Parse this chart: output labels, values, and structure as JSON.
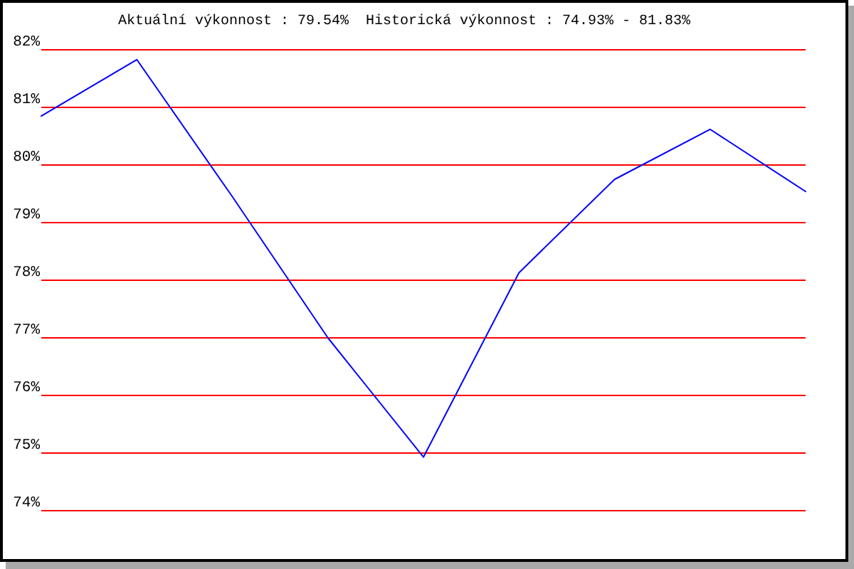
{
  "chart_data": {
    "type": "line",
    "title": "Aktuální výkonnost : 79.54%  Historická výkonnost : 74.93% - 81.83%",
    "categories": [
      null,
      null,
      null,
      null,
      null,
      null,
      null,
      null,
      null
    ],
    "series": [
      {
        "color": "#0000ff",
        "values": [
          80.85,
          81.83,
          79.45,
          77.0,
          74.93,
          78.13,
          79.75,
          80.62,
          79.54
        ]
      }
    ],
    "ylim": [
      74,
      82
    ],
    "yticks": [
      {
        "value": 74,
        "label": "74%"
      },
      {
        "value": 75,
        "label": "75%"
      },
      {
        "value": 76,
        "label": "76%"
      },
      {
        "value": 77,
        "label": "77%"
      },
      {
        "value": 78,
        "label": "78%"
      },
      {
        "value": 79,
        "label": "79%"
      },
      {
        "value": 80,
        "label": "80%"
      },
      {
        "value": 81,
        "label": "81%"
      },
      {
        "value": 82,
        "label": "82%"
      }
    ],
    "grid": true,
    "marker": "none",
    "line_style": "solid"
  }
}
